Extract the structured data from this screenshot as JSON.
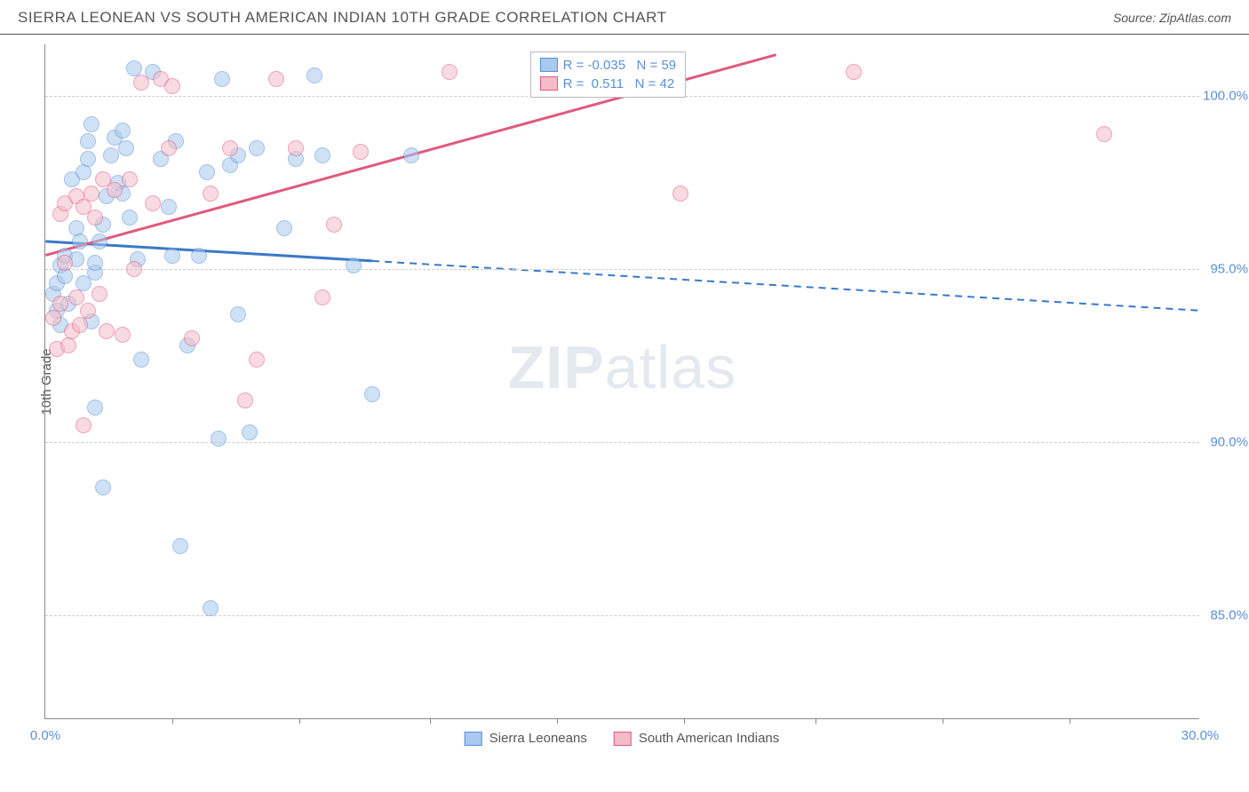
{
  "header": {
    "title": "SIERRA LEONEAN VS SOUTH AMERICAN INDIAN 10TH GRADE CORRELATION CHART",
    "source": "Source: ZipAtlas.com"
  },
  "chart": {
    "type": "scatter",
    "ylabel": "10th Grade",
    "xlim": [
      0,
      30
    ],
    "ylim": [
      82,
      101.5
    ],
    "xticks": [
      0,
      30
    ],
    "xtick_marks": [
      3.3,
      6.6,
      10,
      13.3,
      16.6,
      20,
      23.3,
      26.6
    ],
    "yticks": [
      85,
      90,
      95,
      100
    ],
    "background_color": "#ffffff",
    "grid_color": "#cccccc",
    "marker_radius": 9,
    "marker_opacity": 0.55,
    "series": [
      {
        "name": "Sierra Leoneans",
        "color_fill": "#a9c9ee",
        "color_stroke": "#5b8fd6",
        "r": -0.035,
        "n": 59,
        "trend": {
          "x1": 0,
          "y1": 95.8,
          "x2": 30,
          "y2": 93.8,
          "solid_until_x": 8.5,
          "color": "#3b78c9"
        },
        "points": [
          [
            0.2,
            94.3
          ],
          [
            0.3,
            93.8
          ],
          [
            0.3,
            94.6
          ],
          [
            0.4,
            95.1
          ],
          [
            0.4,
            93.4
          ],
          [
            0.5,
            95.4
          ],
          [
            0.5,
            94.8
          ],
          [
            0.6,
            94.0
          ],
          [
            0.7,
            97.6
          ],
          [
            0.8,
            96.2
          ],
          [
            0.8,
            95.3
          ],
          [
            0.9,
            95.8
          ],
          [
            1.0,
            94.6
          ],
          [
            1.0,
            97.8
          ],
          [
            1.1,
            98.2
          ],
          [
            1.1,
            98.7
          ],
          [
            1.2,
            93.5
          ],
          [
            1.2,
            99.2
          ],
          [
            1.3,
            94.9
          ],
          [
            1.3,
            95.2
          ],
          [
            1.3,
            91.0
          ],
          [
            1.4,
            95.8
          ],
          [
            1.5,
            96.3
          ],
          [
            1.5,
            88.7
          ],
          [
            1.6,
            97.1
          ],
          [
            1.7,
            98.3
          ],
          [
            1.8,
            98.8
          ],
          [
            1.9,
            97.5
          ],
          [
            2.0,
            99.0
          ],
          [
            2.0,
            97.2
          ],
          [
            2.1,
            98.5
          ],
          [
            2.2,
            96.5
          ],
          [
            2.3,
            100.8
          ],
          [
            2.4,
            95.3
          ],
          [
            2.5,
            92.4
          ],
          [
            2.8,
            100.7
          ],
          [
            3.0,
            98.2
          ],
          [
            3.2,
            96.8
          ],
          [
            3.3,
            95.4
          ],
          [
            3.4,
            98.7
          ],
          [
            3.5,
            87.0
          ],
          [
            3.7,
            92.8
          ],
          [
            4.0,
            95.4
          ],
          [
            4.2,
            97.8
          ],
          [
            4.3,
            85.2
          ],
          [
            4.5,
            90.1
          ],
          [
            4.6,
            100.5
          ],
          [
            4.8,
            98.0
          ],
          [
            5.0,
            98.3
          ],
          [
            5.0,
            93.7
          ],
          [
            5.3,
            90.3
          ],
          [
            5.5,
            98.5
          ],
          [
            6.2,
            96.2
          ],
          [
            6.5,
            98.2
          ],
          [
            7.0,
            100.6
          ],
          [
            7.2,
            98.3
          ],
          [
            8.0,
            95.1
          ],
          [
            8.5,
            91.4
          ],
          [
            9.5,
            98.3
          ]
        ]
      },
      {
        "name": "South American Indians",
        "color_fill": "#f4bcc9",
        "color_stroke": "#e05a7e",
        "r": 0.511,
        "n": 42,
        "trend": {
          "x1": 0,
          "y1": 95.4,
          "x2": 19,
          "y2": 101.2,
          "solid_until_x": 19,
          "color": "#e05a7e"
        },
        "points": [
          [
            0.2,
            93.6
          ],
          [
            0.3,
            92.7
          ],
          [
            0.4,
            96.6
          ],
          [
            0.4,
            94.0
          ],
          [
            0.5,
            95.2
          ],
          [
            0.5,
            96.9
          ],
          [
            0.6,
            92.8
          ],
          [
            0.7,
            93.2
          ],
          [
            0.8,
            97.1
          ],
          [
            0.8,
            94.2
          ],
          [
            0.9,
            93.4
          ],
          [
            1.0,
            96.8
          ],
          [
            1.0,
            90.5
          ],
          [
            1.1,
            93.8
          ],
          [
            1.2,
            97.2
          ],
          [
            1.3,
            96.5
          ],
          [
            1.4,
            94.3
          ],
          [
            1.5,
            97.6
          ],
          [
            1.6,
            93.2
          ],
          [
            1.8,
            97.3
          ],
          [
            2.0,
            93.1
          ],
          [
            2.2,
            97.6
          ],
          [
            2.3,
            95.0
          ],
          [
            2.5,
            100.4
          ],
          [
            2.8,
            96.9
          ],
          [
            3.0,
            100.5
          ],
          [
            3.2,
            98.5
          ],
          [
            3.3,
            100.3
          ],
          [
            3.8,
            93.0
          ],
          [
            4.3,
            97.2
          ],
          [
            4.8,
            98.5
          ],
          [
            5.2,
            91.2
          ],
          [
            5.5,
            92.4
          ],
          [
            6.0,
            100.5
          ],
          [
            6.5,
            98.5
          ],
          [
            7.2,
            94.2
          ],
          [
            7.5,
            96.3
          ],
          [
            8.2,
            98.4
          ],
          [
            10.5,
            100.7
          ],
          [
            16.5,
            97.2
          ],
          [
            21.0,
            100.7
          ],
          [
            27.5,
            98.9
          ]
        ]
      }
    ],
    "legend_box": {
      "left_pct": 42,
      "top_pct": 1
    },
    "bottom_legend": [
      {
        "label": "Sierra Leoneans",
        "fill": "#a9c9ee",
        "stroke": "#5b8fd6"
      },
      {
        "label": "South American Indians",
        "fill": "#f4bcc9",
        "stroke": "#e05a7e"
      }
    ],
    "watermark": {
      "bold": "ZIP",
      "rest": "atlas",
      "color": "#d8e0e8"
    }
  }
}
